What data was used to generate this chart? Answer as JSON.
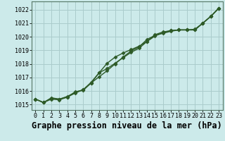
{
  "title": "Graphe pression niveau de la mer (hPa)",
  "bg_color": "#cceaea",
  "grid_color": "#aacccc",
  "line_color": "#2d5a27",
  "xlim": [
    -0.5,
    23.5
  ],
  "ylim": [
    1014.6,
    1022.6
  ],
  "yticks": [
    1015,
    1016,
    1017,
    1018,
    1019,
    1020,
    1021,
    1022
  ],
  "xticks": [
    0,
    1,
    2,
    3,
    4,
    5,
    6,
    7,
    8,
    9,
    10,
    11,
    12,
    13,
    14,
    15,
    16,
    17,
    18,
    19,
    20,
    21,
    22,
    23
  ],
  "line1": [
    1015.4,
    1015.15,
    1015.5,
    1015.4,
    1015.6,
    1015.9,
    1016.1,
    1016.6,
    1017.05,
    1017.5,
    1018.0,
    1018.5,
    1018.95,
    1019.25,
    1019.8,
    1020.1,
    1020.25,
    1020.4,
    1020.5,
    1020.5,
    1020.5,
    1021.0,
    1021.5,
    1022.1
  ],
  "line2": [
    1015.4,
    1015.15,
    1015.45,
    1015.4,
    1015.55,
    1015.85,
    1016.1,
    1016.65,
    1017.35,
    1017.65,
    1018.05,
    1018.45,
    1018.85,
    1019.15,
    1019.65,
    1020.05,
    1020.3,
    1020.45,
    1020.5,
    1020.5,
    1020.5,
    1021.0,
    1021.5,
    1022.1
  ],
  "line3": [
    1015.4,
    1015.15,
    1015.4,
    1015.35,
    1015.55,
    1015.95,
    1016.05,
    1016.6,
    1017.35,
    1018.05,
    1018.5,
    1018.8,
    1019.05,
    1019.3,
    1019.65,
    1020.15,
    1020.35,
    1020.45,
    1020.5,
    1020.5,
    1020.55,
    1021.0,
    1021.5,
    1022.1
  ],
  "marker": "D",
  "markersize": 2.5,
  "linewidth": 1.0,
  "title_fontsize": 8.5,
  "tick_fontsize": 6.0
}
